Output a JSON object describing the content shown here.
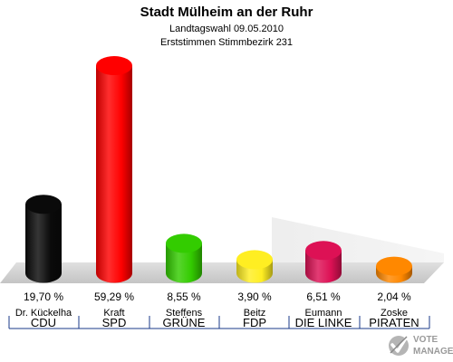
{
  "chart_data": {
    "type": "bar",
    "title": "Stadt Mülheim an der Ruhr",
    "subtitle_1": "Landtagswahl 09.05.2010",
    "subtitle_2": "Erststimmen Stimmbezirk 231",
    "ylim": [
      0,
      65
    ],
    "candidates": [
      "Dr. Kückelha",
      "Kraft",
      "Steffens",
      "Beitz",
      "Eumann",
      "Zoske"
    ],
    "categories": [
      "CDU",
      "SPD",
      "GRÜNE",
      "FDP",
      "DIE LINKE",
      "PIRATEN"
    ],
    "values": [
      19.7,
      59.29,
      8.55,
      3.9,
      6.51,
      2.04
    ],
    "value_labels": [
      "19,70 %",
      "59,29 %",
      "8,55 %",
      "3,90 %",
      "6,51 %",
      "2,04 %"
    ],
    "colors": [
      "#0a0a0a",
      "#ff0000",
      "#33cc00",
      "#ffee22",
      "#dd1155",
      "#ff8800"
    ],
    "legend": "none",
    "grid": false
  },
  "watermark": {
    "line1": "VOTE",
    "line2": "MANAGER"
  }
}
